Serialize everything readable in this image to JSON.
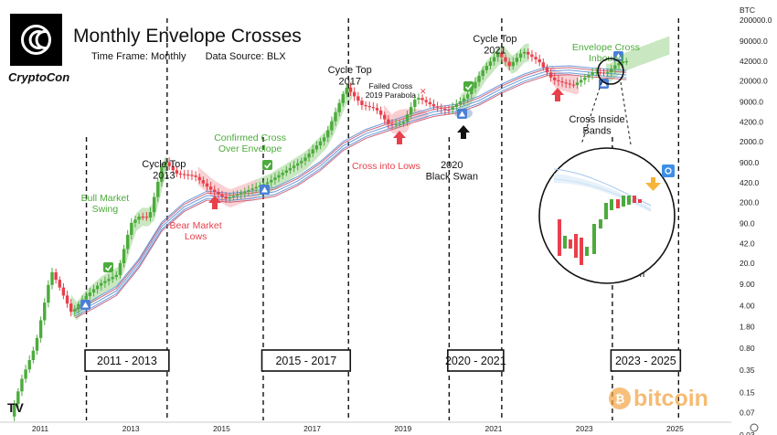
{
  "header": {
    "title": "Monthly Envelope Crosses",
    "timeframe": "Time Frame: Monthly",
    "source": "Data Source: BLX",
    "brand": "CryptoCon",
    "currency": "BTC",
    "watermark": "bitcoin",
    "tv_logo": "TV"
  },
  "chart_data": {
    "type": "candlestick",
    "scale": "log",
    "y_ticks": [
      "200000.0",
      "90000.0",
      "42000.0",
      "20000.0",
      "9000.0",
      "4200.0",
      "2000.0",
      "900.0",
      "420.0",
      "200.0",
      "90.0",
      "42.0",
      "20.0",
      "9.00",
      "4.00",
      "1.80",
      "0.80",
      "0.35",
      "0.15",
      "0.07",
      "0.03"
    ],
    "y_tick_values": [
      200000,
      90000,
      42000,
      20000,
      9000,
      4200,
      2000,
      900,
      420,
      200,
      90,
      42,
      20,
      9,
      4,
      1.8,
      0.8,
      0.35,
      0.15,
      0.07,
      0.03
    ],
    "x_ticks": [
      "2011",
      "2013",
      "2015",
      "2017",
      "2019",
      "2021",
      "2023",
      "2025"
    ],
    "x_tick_years": [
      2011,
      2013,
      2015,
      2017,
      2019,
      2021,
      2023,
      2025
    ],
    "price_path": [
      [
        2010.55,
        0.06
      ],
      [
        2010.8,
        0.25
      ],
      [
        2011.1,
        0.9
      ],
      [
        2011.45,
        15
      ],
      [
        2011.6,
        9
      ],
      [
        2011.9,
        3
      ],
      [
        2012.1,
        4.8
      ],
      [
        2012.5,
        9
      ],
      [
        2012.9,
        13
      ],
      [
        2013.2,
        90
      ],
      [
        2013.4,
        120
      ],
      [
        2013.6,
        110
      ],
      [
        2013.92,
        1000
      ],
      [
        2014.2,
        600
      ],
      [
        2014.6,
        550
      ],
      [
        2014.95,
        330
      ],
      [
        2015.3,
        230
      ],
      [
        2015.8,
        320
      ],
      [
        2016.2,
        420
      ],
      [
        2016.6,
        650
      ],
      [
        2017.0,
        1000
      ],
      [
        2017.5,
        2500
      ],
      [
        2017.95,
        16000
      ],
      [
        2018.3,
        8000
      ],
      [
        2018.6,
        7000
      ],
      [
        2018.9,
        3800
      ],
      [
        2019.2,
        4000
      ],
      [
        2019.5,
        11000
      ],
      [
        2019.9,
        7500
      ],
      [
        2020.2,
        6500
      ],
      [
        2020.6,
        11000
      ],
      [
        2020.95,
        29000
      ],
      [
        2021.3,
        58000
      ],
      [
        2021.55,
        35000
      ],
      [
        2021.85,
        62000
      ],
      [
        2022.2,
        42000
      ],
      [
        2022.5,
        21000
      ],
      [
        2022.95,
        16800
      ],
      [
        2023.4,
        28000
      ],
      [
        2023.7,
        27000
      ],
      [
        2023.9,
        37000
      ],
      [
        2024.05,
        42000
      ]
    ],
    "envelope": [
      [
        2011.9,
        3.0
      ],
      [
        2012.3,
        4.3
      ],
      [
        2012.8,
        7
      ],
      [
        2013.3,
        20
      ],
      [
        2013.8,
        80
      ],
      [
        2014.3,
        170
      ],
      [
        2014.8,
        260
      ],
      [
        2015.3,
        240
      ],
      [
        2015.8,
        260
      ],
      [
        2016.3,
        300
      ],
      [
        2016.8,
        450
      ],
      [
        2017.3,
        800
      ],
      [
        2017.8,
        1700
      ],
      [
        2018.3,
        2700
      ],
      [
        2018.8,
        3600
      ],
      [
        2019.3,
        4800
      ],
      [
        2019.8,
        6200
      ],
      [
        2020.3,
        7000
      ],
      [
        2020.8,
        9500
      ],
      [
        2021.3,
        15000
      ],
      [
        2021.8,
        22000
      ],
      [
        2022.3,
        29000
      ],
      [
        2022.8,
        30000
      ],
      [
        2023.3,
        27500
      ],
      [
        2023.8,
        26000
      ],
      [
        2024.05,
        25000
      ]
    ],
    "highlight_zones": [
      {
        "type": "bull",
        "years": [
          2011.8,
          2013.9
        ],
        "color": "#bfe3b6"
      },
      {
        "type": "bull",
        "years": [
          2015.8,
          2018.0
        ],
        "color": "#bfe3b6"
      },
      {
        "type": "bull",
        "years": [
          2020.4,
          2021.9
        ],
        "color": "#bfe3b6"
      },
      {
        "type": "bull",
        "years": [
          2023.6,
          2025.0
        ],
        "color": "#bfe3b6"
      },
      {
        "type": "bear",
        "years": [
          2014.6,
          2015.9
        ],
        "color": "#f8c9cc"
      },
      {
        "type": "bear",
        "years": [
          2018.7,
          2019.3
        ],
        "color": "#f8c9cc"
      },
      {
        "type": "bear",
        "years": [
          2022.4,
          2023.0
        ],
        "color": "#f8c9cc"
      }
    ],
    "periods": [
      {
        "label": "2011 - 2013",
        "years": [
          2012.15,
          2013.92
        ]
      },
      {
        "label": "2015 - 2017",
        "years": [
          2016.05,
          2017.92
        ]
      },
      {
        "label": "2020 - 2021",
        "years": [
          2020.15,
          2021.3
        ]
      },
      {
        "label": "2023 - 2025",
        "years": [
          2023.75,
          2025.2
        ]
      }
    ],
    "annotations": [
      {
        "text": [
          "Cycle Top",
          "2013"
        ],
        "year": 2013.85,
        "y": 183,
        "color": "#111"
      },
      {
        "text": [
          "Cycle Top",
          "2017"
        ],
        "year": 2017.95,
        "y": 80,
        "color": "#111"
      },
      {
        "text": [
          "Cycle Top",
          "2021"
        ],
        "year": 2021.15,
        "y": 46,
        "color": "#111"
      },
      {
        "text": [
          "Bull Market",
          "Swing"
        ],
        "year": 2012.55,
        "y": 220,
        "color": "#4cab3c"
      },
      {
        "text": [
          "Confirmed Cross",
          "Over Envelope"
        ],
        "year": 2015.75,
        "y": 154,
        "color": "#4cab3c"
      },
      {
        "text": [
          "Envelope Cross",
          "Inbound"
        ],
        "year": 2023.6,
        "y": 55,
        "color": "#4cab3c"
      },
      {
        "text": [
          "Bear Market",
          "Lows"
        ],
        "year": 2014.55,
        "y": 250,
        "color": "#e8404b"
      },
      {
        "text": [
          "Cross into Lows"
        ],
        "year": 2018.75,
        "y": 185,
        "color": "#e8404b"
      },
      {
        "text": [
          "Failed Cross",
          "2019 Parabola"
        ],
        "year": 2018.85,
        "y": 97,
        "color": "#111"
      },
      {
        "text": [
          "2020",
          "Black Swan"
        ],
        "year": 2020.2,
        "y": 184,
        "color": "#111"
      },
      {
        "text": [
          "Cross Inside",
          "Bands"
        ],
        "year": 2023.4,
        "y": 134,
        "color": "#111"
      },
      {
        "text": [
          "Cross Zoom"
        ],
        "year": 2023.85,
        "y": 303,
        "color": "#111"
      }
    ]
  },
  "colors": {
    "up": "#4cab3c",
    "down": "#e8404b",
    "band": "#5b8fd6",
    "band_alt": "#c7556b",
    "guide": "#111111",
    "watermark": "#f2a545"
  }
}
